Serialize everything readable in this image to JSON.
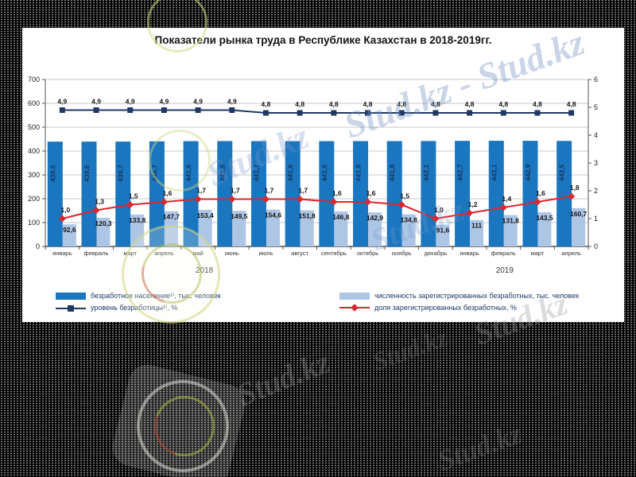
{
  "slide": {
    "title": "Показатели рынка труда в Республике Казахстан в 2018-2019гг."
  },
  "chart_data": {
    "type": "bar",
    "subtype": "clustered-bars-with-lines-combo",
    "categories": [
      "январь",
      "февраль",
      "март",
      "апрель",
      "май",
      "июнь",
      "июль",
      "август",
      "сентябрь",
      "октябрь",
      "ноябрь",
      "декабрь",
      "январь",
      "февраль",
      "март",
      "апрель"
    ],
    "year_groups": [
      {
        "label": "2018",
        "from_month": 1,
        "to_month": 12
      },
      {
        "label": "2019",
        "from_month": 13,
        "to_month": 16
      }
    ],
    "left_axis": {
      "min": 0,
      "max": 700,
      "step": 100,
      "tick_labels": [
        "0",
        "100",
        "200",
        "300",
        "400",
        "500",
        "600",
        "700"
      ]
    },
    "right_axis": {
      "min": 0,
      "max": 6,
      "step": 1,
      "tick_labels": [
        "0",
        "1",
        "2",
        "3",
        "4",
        "5",
        "6"
      ]
    },
    "grid": "horizontal",
    "legend_position": "bottom",
    "series": [
      {
        "name": "безработное население¹⁾, тыс. человек",
        "kind": "bar",
        "axis": "left",
        "color": "#1B76C0",
        "label_color": "#17375E",
        "values": [
          439.5,
          439.6,
          439.7,
          440.7,
          441.6,
          441.9,
          441.7,
          441.6,
          441.6,
          441.8,
          441.8,
          442.1,
          442.7,
          443.1,
          442.9,
          442.5
        ],
        "labels": [
          "439,5",
          "439,6",
          "439,7",
          "440,7",
          "441,6",
          "441,9",
          "441,7",
          "441,6",
          "441,6",
          "441,8",
          "441,8",
          "442,1",
          "442,7",
          "443,1",
          "442,9",
          "442,5"
        ]
      },
      {
        "name": "численность зарегистрированных  безработных, тыс. человек",
        "kind": "bar",
        "axis": "left",
        "color": "#AEC6E6",
        "label_color": "#141414",
        "values": [
          92.6,
          120.3,
          133.8,
          147.7,
          153.4,
          149.5,
          154.6,
          151.8,
          146.8,
          142.9,
          134.8,
          91.6,
          111,
          131.8,
          143.5,
          160.7
        ],
        "labels": [
          "92,6",
          "120,3",
          "133,8",
          "147,7",
          "153,4",
          "149,5",
          "154,6",
          "151,8",
          "146,8",
          "142,9",
          "134,8",
          "91,6",
          "111",
          "131,8",
          "143,5",
          "160,7"
        ]
      },
      {
        "name": "уровень безработицы¹⁾, %",
        "kind": "line",
        "axis": "right",
        "color": "#1F3864",
        "marker": "square",
        "label_color": "#141414",
        "values": [
          4.9,
          4.9,
          4.9,
          4.9,
          4.9,
          4.9,
          4.8,
          4.8,
          4.8,
          4.8,
          4.8,
          4.8,
          4.8,
          4.8,
          4.8,
          4.8
        ],
        "labels": [
          "4,9",
          "4,9",
          "4,9",
          "4,9",
          "4,9",
          "4,9",
          "4,8",
          "4,8",
          "4,8",
          "4,8",
          "4,8",
          "4,8",
          "4,8",
          "4,8",
          "4,8",
          "4,8"
        ]
      },
      {
        "name": "доля зарегистрированных  безработных, %",
        "kind": "line",
        "axis": "right",
        "color": "#D9282E",
        "marker": "diamond",
        "label_color": "#141414",
        "values": [
          1.0,
          1.3,
          1.5,
          1.6,
          1.7,
          1.7,
          1.7,
          1.7,
          1.6,
          1.6,
          1.5,
          1.0,
          1.2,
          1.4,
          1.6,
          1.8
        ],
        "labels": [
          "1,0",
          "1,3",
          "1,5",
          "1,6",
          "1,7",
          "1,7",
          "1,7",
          "1,7",
          "1,6",
          "1,6",
          "1,5",
          "1,0",
          "1,2",
          "1,4",
          "1,6",
          "1,8"
        ]
      }
    ]
  },
  "watermarks": {
    "main": "Stud.kz - Stud.kz",
    "short": "Stud.kz"
  }
}
